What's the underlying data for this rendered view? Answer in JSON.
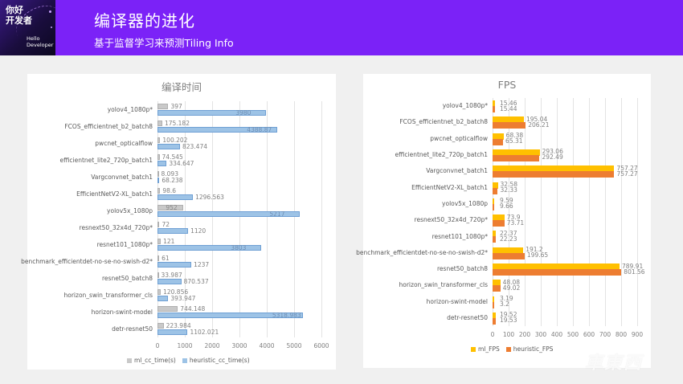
{
  "header": {
    "logo_cn": "你好\n开发者",
    "logo_line1": "你好",
    "logo_line2": "开发者",
    "logo_en_line1": "Hello",
    "logo_en_line2": "Developer",
    "title": "编译器的进化",
    "subtitle": "基于监督学习来预测Tiling Info",
    "accent_color": "#7b22f7"
  },
  "watermark": "車東西",
  "chart_data": [
    {
      "type": "bar",
      "orientation": "horizontal",
      "title": "编译时间",
      "xlabel": "",
      "ylabel": "",
      "xlim": [
        0,
        6000
      ],
      "xticks": [
        "0",
        "1000",
        "2000",
        "3000",
        "4000",
        "5000",
        "6000"
      ],
      "grid": true,
      "legend_position": "bottom",
      "categories": [
        "yolov4_1080p*",
        "FCOS_efficientnet_b2_batch8",
        "pwcnet_opticalflow",
        "efficientnet_lite2_720p_batch1",
        "Vargconvnet_batch1",
        "EfficientNetV2-XL_batch1",
        "yolov5x_1080p",
        "resnext50_32x4d_720p*",
        "resnet101_1080p*",
        "benchmark_efficientdet-no-se-no-swish-d2*",
        "resnet50_batch8",
        "horizon_swin_transformer_cls",
        "horizon-swint-model",
        "detr-resnet50"
      ],
      "series": [
        {
          "name": "ml_cc_time(s)",
          "color": "#c9c9c9",
          "values": [
            397,
            175.182,
            100.202,
            74.545,
            8.093,
            98.6,
            952,
            72,
            121,
            61,
            33.987,
            120.856,
            744.148,
            223.984
          ],
          "labels": [
            "397",
            "175.182",
            "100.202",
            "74.545",
            "8.093",
            "98.6",
            "952",
            "72",
            "121",
            "61",
            "33.987",
            "120.856",
            "744.148",
            "223.984"
          ]
        },
        {
          "name": "heuristic_cc_time(s)",
          "color": "#9dc3e6",
          "values": [
            3980,
            4388.87,
            823.474,
            334.647,
            68.238,
            1296.563,
            5217,
            1120,
            3803,
            1237,
            870.537,
            393.947,
            5318.983,
            1102.021
          ],
          "labels": [
            "3980",
            "4388.87",
            "823.474",
            "334.647",
            "68.238",
            "1296.563",
            "5217",
            "1120",
            "3803",
            "1237",
            "870.537",
            "393.947",
            "5318.983",
            "1102.021"
          ]
        }
      ]
    },
    {
      "type": "bar",
      "orientation": "horizontal",
      "title": "FPS",
      "xlabel": "",
      "ylabel": "",
      "xlim": [
        0,
        900
      ],
      "xticks": [
        "0",
        "100",
        "200",
        "300",
        "400",
        "500",
        "600",
        "700",
        "800",
        "900"
      ],
      "grid": true,
      "legend_position": "bottom",
      "categories": [
        "yolov4_1080p*",
        "FCOS_efficientnet_b2_batch8",
        "pwcnet_opticalflow",
        "efficientnet_lite2_720p_batch1",
        "Vargconvnet_batch1",
        "EfficientNetV2-XL_batch1",
        "yolov5x_1080p",
        "resnext50_32x4d_720p*",
        "resnet101_1080p*",
        "benchmark_efficientdet-no-se-no-swish-d2*",
        "resnet50_batch8",
        "horizon_swin_transformer_cls",
        "horizon-swint-model",
        "detr-resnet50"
      ],
      "series": [
        {
          "name": "ml_FPS",
          "color": "#ffc000",
          "values": [
            15.46,
            195.04,
            68.38,
            293.06,
            757.27,
            32.58,
            9.59,
            73.9,
            22.37,
            191.2,
            789.91,
            48.08,
            3.19,
            19.52
          ],
          "labels": [
            "15.46",
            "195.04",
            "68.38",
            "293.06",
            "757.27",
            "32.58",
            "9.59",
            "73.9",
            "22.37",
            "191.2",
            "789.91",
            "48.08",
            "3.19",
            "19.52"
          ]
        },
        {
          "name": "heuristic_FPS",
          "color": "#ed7d31",
          "values": [
            15.44,
            206.21,
            65.31,
            292.49,
            757.27,
            32.33,
            9.66,
            73.71,
            22.23,
            199.65,
            801.56,
            49.02,
            3.2,
            19.53
          ],
          "labels": [
            "15.44",
            "206.21",
            "65.31",
            "292.49",
            "757.27",
            "32.33",
            "9.66",
            "73.71",
            "22.23",
            "199.65",
            "801.56",
            "49.02",
            "3.2",
            "19.53"
          ]
        }
      ]
    }
  ]
}
